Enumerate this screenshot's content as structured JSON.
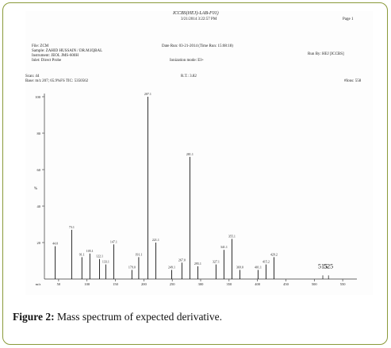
{
  "header": {
    "title": "ICCBS(HEJ)-LAB-F01)",
    "datetime": "3/21/2014  3:22:57 PM",
    "page": "Page 1",
    "file": "File: ZCM",
    "sample": "Sample: ZAHID HUSSAIN / DR.M.IQBAL",
    "instrument": "Instrument: JEOL JMS-600H",
    "inlet": "Inlet: Direct Probe",
    "date_run": "Date Run: 03-21-2014 (Time Run: 15:08:18)",
    "ionization": "Ionization mode: EI+",
    "run_by": "Run By: HEJ [ICCBS]",
    "scan": "Scan: 44",
    "base": "Base: m/z 207; 65.9%FS  TIC: 5350562",
    "rt": "R.T.: 3.82",
    "ions": "#Ions: 558"
  },
  "caption": {
    "label": "Figure 2:",
    "text": " Mass spectrum of expected derivative."
  },
  "chart_data": {
    "type": "bar",
    "xlabel": "m/z",
    "ylabel": "%",
    "xlim": [
      25,
      575
    ],
    "ylim": [
      0,
      100
    ],
    "x_ticks": [
      50,
      100,
      150,
      200,
      250,
      300,
      350,
      400,
      450,
      500,
      550
    ],
    "y_ticks": [
      20,
      40,
      60,
      80,
      100
    ],
    "peaks": [
      {
        "mz": 44,
        "intensity": 18,
        "label": "44.0"
      },
      {
        "mz": 73,
        "intensity": 27,
        "label": "73.1"
      },
      {
        "mz": 91,
        "intensity": 12,
        "label": "91.1"
      },
      {
        "mz": 105,
        "intensity": 14,
        "label": "105.1"
      },
      {
        "mz": 122,
        "intensity": 11,
        "label": "122.1"
      },
      {
        "mz": 133,
        "intensity": 8,
        "label": "133.1"
      },
      {
        "mz": 147,
        "intensity": 19,
        "label": "147.1"
      },
      {
        "mz": 179,
        "intensity": 5,
        "label": "179.0"
      },
      {
        "mz": 191,
        "intensity": 12,
        "label": "191.1"
      },
      {
        "mz": 207,
        "intensity": 100,
        "label": "207.1"
      },
      {
        "mz": 221,
        "intensity": 20,
        "label": "221.1"
      },
      {
        "mz": 249,
        "intensity": 5,
        "label": "249.1"
      },
      {
        "mz": 267,
        "intensity": 9,
        "label": "267.0"
      },
      {
        "mz": 281,
        "intensity": 67,
        "label": "281.1"
      },
      {
        "mz": 295,
        "intensity": 7,
        "label": "295.1"
      },
      {
        "mz": 327,
        "intensity": 8,
        "label": "327.1"
      },
      {
        "mz": 341,
        "intensity": 16,
        "label": "341.1"
      },
      {
        "mz": 355,
        "intensity": 22,
        "label": "355.1"
      },
      {
        "mz": 369,
        "intensity": 5,
        "label": "369.0"
      },
      {
        "mz": 401,
        "intensity": 5,
        "label": "401.1"
      },
      {
        "mz": 415,
        "intensity": 8,
        "label": "415.2"
      },
      {
        "mz": 429,
        "intensity": 12,
        "label": "429.2"
      }
    ],
    "annotations": [
      {
        "mz": 515,
        "text": "515"
      },
      {
        "mz": 525,
        "text": "525"
      }
    ]
  }
}
